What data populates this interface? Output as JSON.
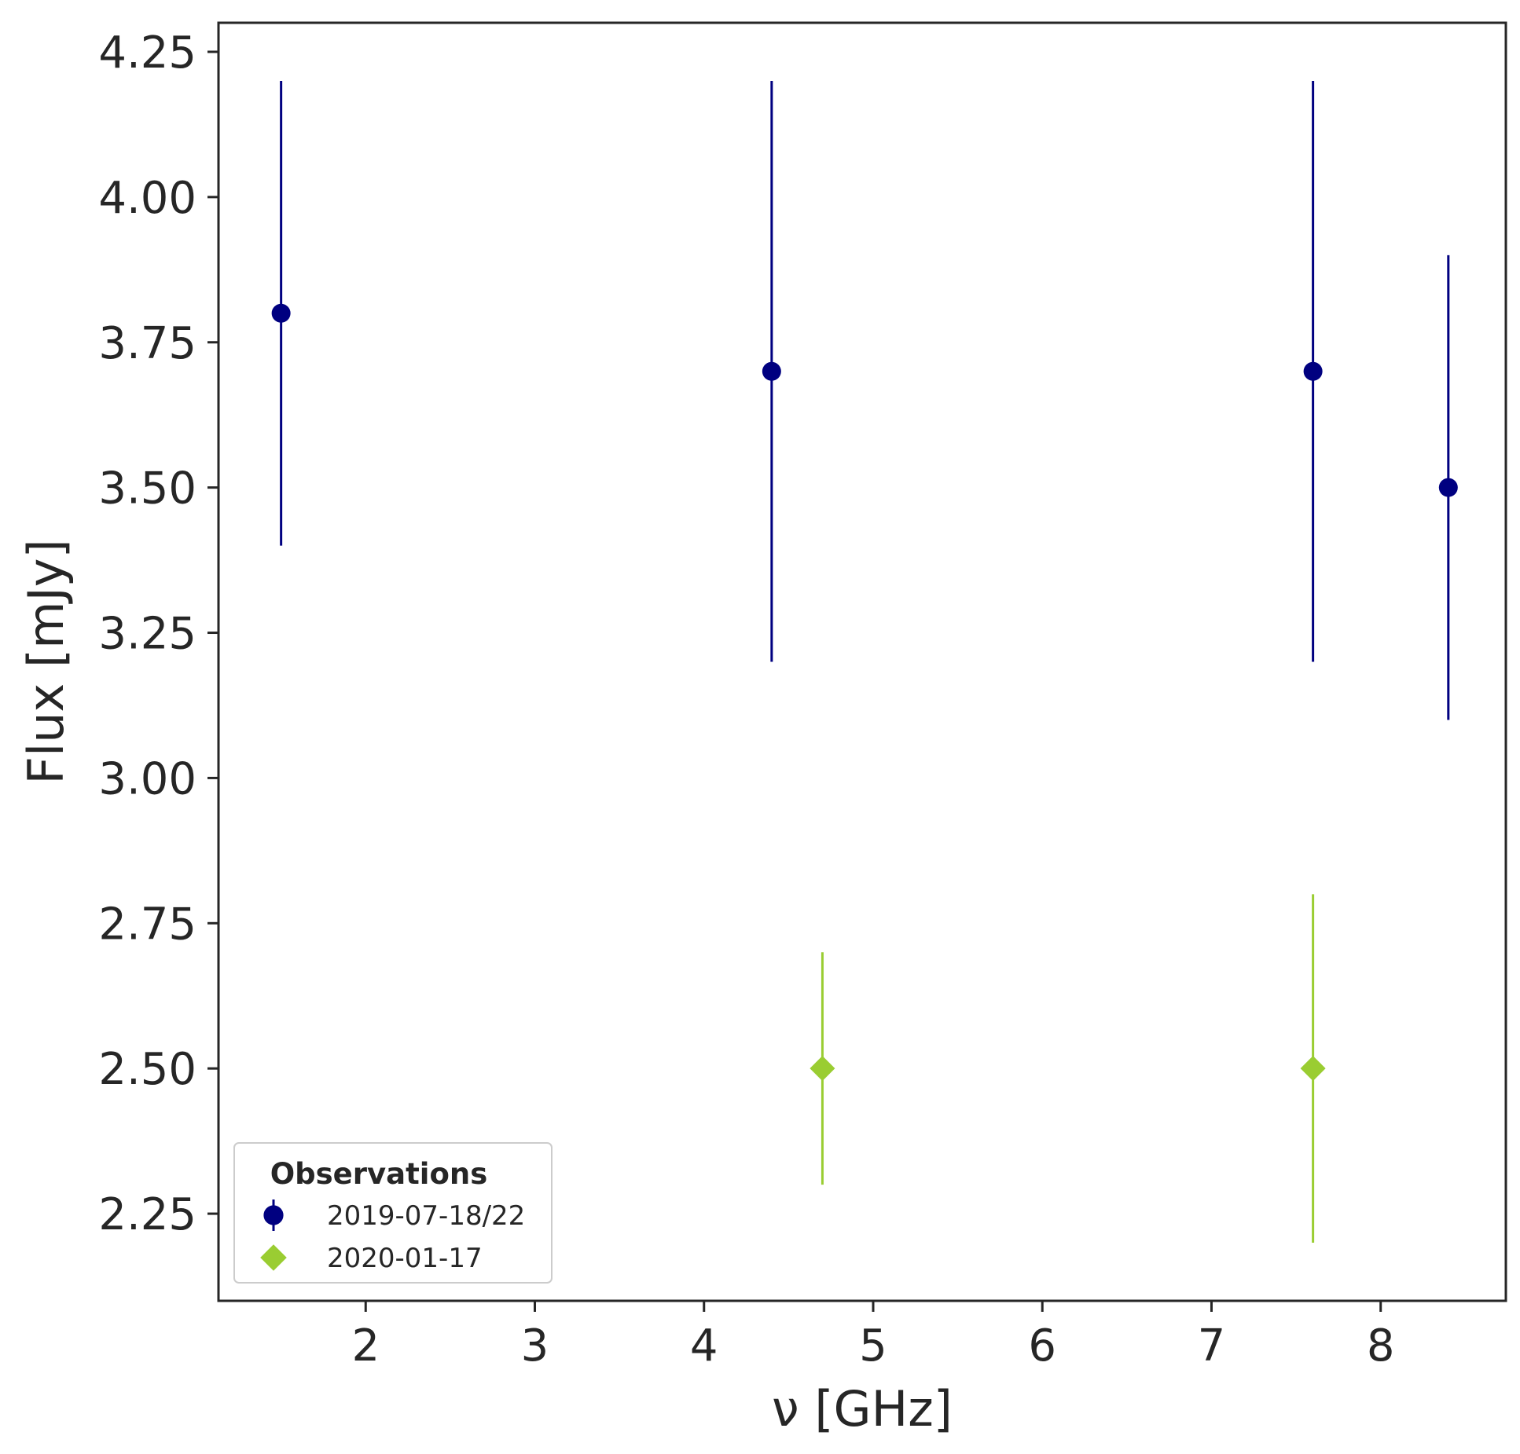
{
  "chart_data": {
    "type": "scatter",
    "title": "",
    "xlabel": "ν [GHz]",
    "ylabel": "Flux [mJy]",
    "xlim": [
      1.13,
      8.74
    ],
    "ylim": [
      2.1,
      4.3
    ],
    "xticks": [
      2,
      3,
      4,
      5,
      6,
      7,
      8
    ],
    "xtick_labels": [
      "2",
      "3",
      "4",
      "5",
      "6",
      "7",
      "8"
    ],
    "yticks": [
      2.25,
      2.5,
      2.75,
      3.0,
      3.25,
      3.5,
      3.75,
      4.0,
      4.25
    ],
    "ytick_labels": [
      "2.25",
      "2.50",
      "2.75",
      "3.00",
      "3.25",
      "3.50",
      "3.75",
      "4.00",
      "4.25"
    ],
    "grid": false,
    "legend": {
      "title": "Observations",
      "placement": "lower-left"
    },
    "series": [
      {
        "name": "2019-07-18/22",
        "marker": "circle",
        "color": "#000080",
        "x": [
          1.5,
          4.4,
          7.6,
          8.4
        ],
        "y": [
          3.8,
          3.7,
          3.7,
          3.5
        ],
        "yerr": [
          0.4,
          0.5,
          0.5,
          0.4
        ]
      },
      {
        "name": "2020-01-17",
        "marker": "diamond",
        "color": "#9ACD32",
        "x": [
          4.7,
          7.6
        ],
        "y": [
          2.5,
          2.5
        ],
        "yerr": [
          0.2,
          0.3
        ]
      }
    ]
  }
}
